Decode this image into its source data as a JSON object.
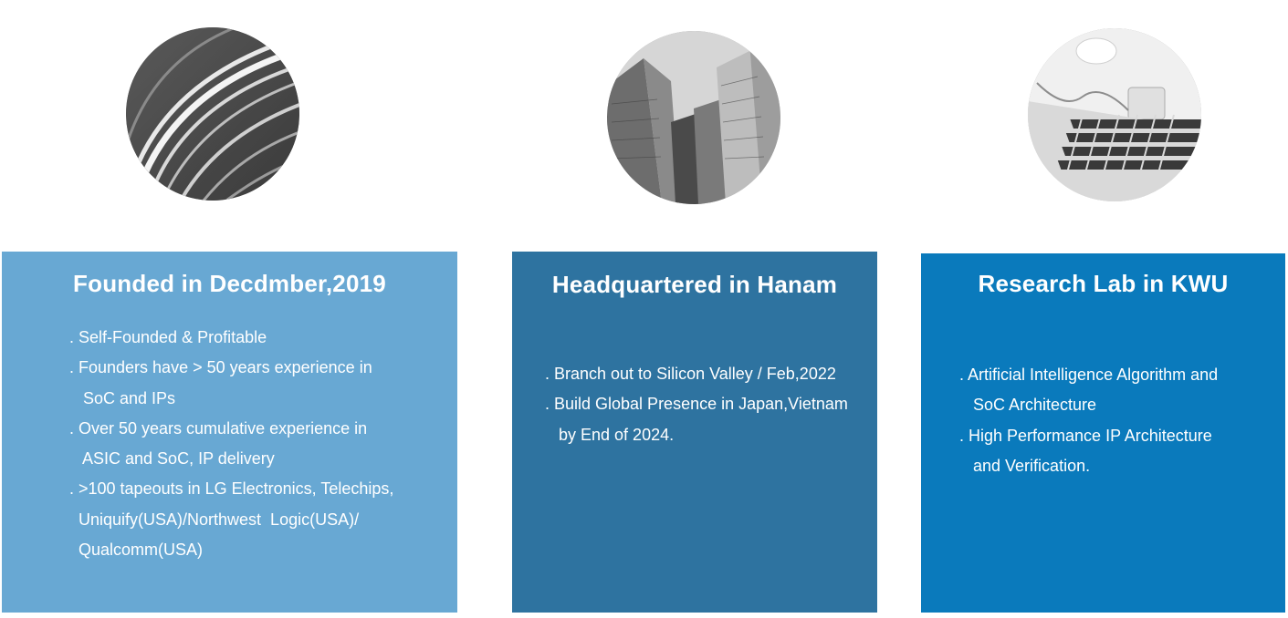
{
  "images": [
    {
      "icon": "highway-light-trails-photo"
    },
    {
      "icon": "skyscrapers-photo"
    },
    {
      "icon": "laptop-keyboard-photo"
    }
  ],
  "cards": [
    {
      "title": "Founded in Decdmber,2019",
      "color": "#68a8d3",
      "lines": [
        ". Self-Founded & Profitable",
        ". Founders have > 50 years experience in",
        "   SoC and IPs",
        ". Over 50 years cumulative experience in",
        "   ASIC and SoC, IP delivery",
        ". >100 tapeouts in LG Electronics, Telechips,",
        "  Uniquify(USA)/Northwest  Logic(USA)/",
        "  Qualcomm(USA)"
      ]
    },
    {
      "title": "Headquartered in Hanam",
      "color": "#2e73a0",
      "lines": [
        ". Branch out to Silicon Valley / Feb,2022",
        ". Build Global Presence in Japan,Vietnam",
        "   by End of 2024."
      ]
    },
    {
      "title": "Research Lab in KWU",
      "color": "#0a7abc",
      "lines": [
        ". Artificial Intelligence Algorithm and",
        "   SoC Architecture",
        ". High Performance IP Architecture",
        "   and Verification."
      ]
    }
  ]
}
